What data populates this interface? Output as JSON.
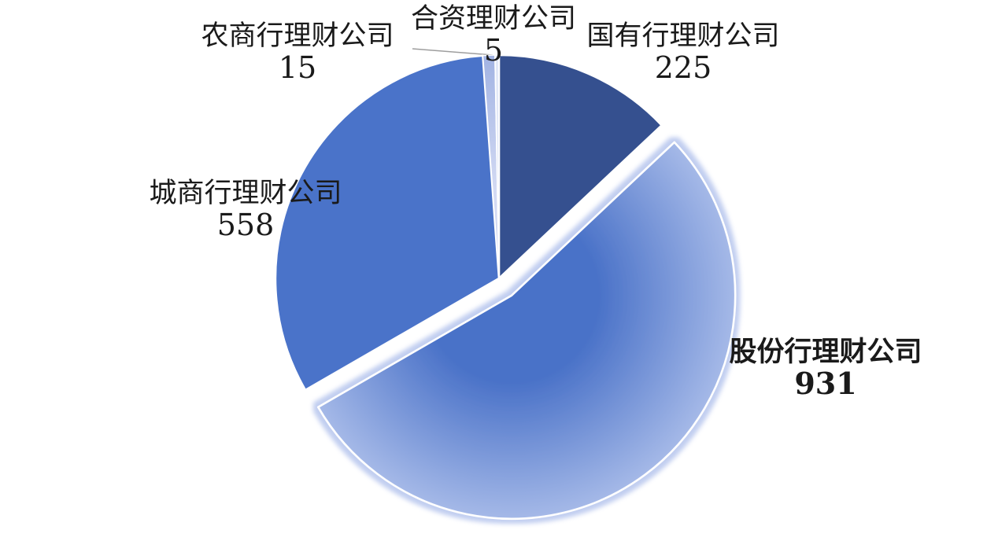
{
  "chart_data": {
    "type": "pie",
    "title": "",
    "legend": "none",
    "direction": "clockwise",
    "start_angle_deg": 0,
    "data_labels": "outside, category name + value",
    "background": "#FFFFFF",
    "label_text_color": "#1A1A1A",
    "slice_border_color": "#FFFFFF",
    "explosion_halo_color": "#C1CEF0",
    "leader_line_color": "#9E9E9E",
    "slices": [
      {
        "label": "国有行理财公司",
        "value": 225,
        "color": "#35508F",
        "exploded": false
      },
      {
        "label": "股份行理财公司",
        "value": 931,
        "color": "#4A72C8",
        "color_rim": "#A9BCE9",
        "exploded": true
      },
      {
        "label": "城商行理财公司",
        "value": 558,
        "color": "#4A73C9",
        "exploded": false
      },
      {
        "label": "农商行理财公司",
        "value": 15,
        "color": "#D3DAF3",
        "color_rim": "#9FB1E2",
        "exploded": false
      },
      {
        "label": "合资理财公司",
        "value": 5,
        "color": "#E2E8F7",
        "exploded": false
      }
    ]
  }
}
